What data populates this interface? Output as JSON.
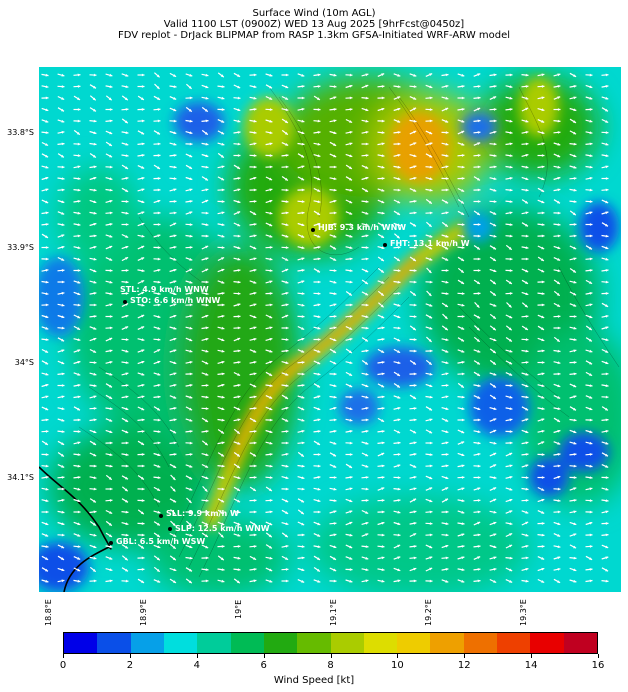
{
  "titles": {
    "line1": "Surface Wind (10m AGL)",
    "line2": "Valid 1100 LST (0900Z) WED 13 Aug 2025 [9hrFcst@0450z]",
    "line3": "FDV replot - DrJack BLIPMAP from RASP 1.3km GFSA-Initiated WRF-ARW model"
  },
  "lat_labels": [
    "33.8°S",
    "33.9°S",
    "34°S",
    "34.1°S"
  ],
  "lon_labels": [
    "18.8°E",
    "18.9°E",
    "19°E",
    "19.1°E",
    "19.2°E",
    "19.3°E"
  ],
  "stations": [
    {
      "label": "HJB: 9.3 km/h WNW"
    },
    {
      "label": "FHT: 13.1 km/h W"
    },
    {
      "label": "STL: 4.9 km/h WNW"
    },
    {
      "label": "STO: 6.6 km/h WNW"
    },
    {
      "label": "SLL: 9.9 km/h W"
    },
    {
      "label": "SLP: 12.5 km/h WNW"
    },
    {
      "label": "GBL: 6.5 km/h WSW"
    }
  ],
  "colorbar": {
    "label": "Wind Speed [kt]",
    "ticks": [
      "0",
      "2",
      "4",
      "6",
      "8",
      "10",
      "12",
      "14",
      "16"
    ],
    "colors": [
      "#0000e8",
      "#0a4fe8",
      "#06a0e8",
      "#00dede",
      "#00cc9a",
      "#00bb55",
      "#22aa11",
      "#66bb00",
      "#aacc00",
      "#dddd00",
      "#eecc00",
      "#eea000",
      "#ee7000",
      "#ee4000",
      "#e80000",
      "#c00020"
    ]
  }
}
